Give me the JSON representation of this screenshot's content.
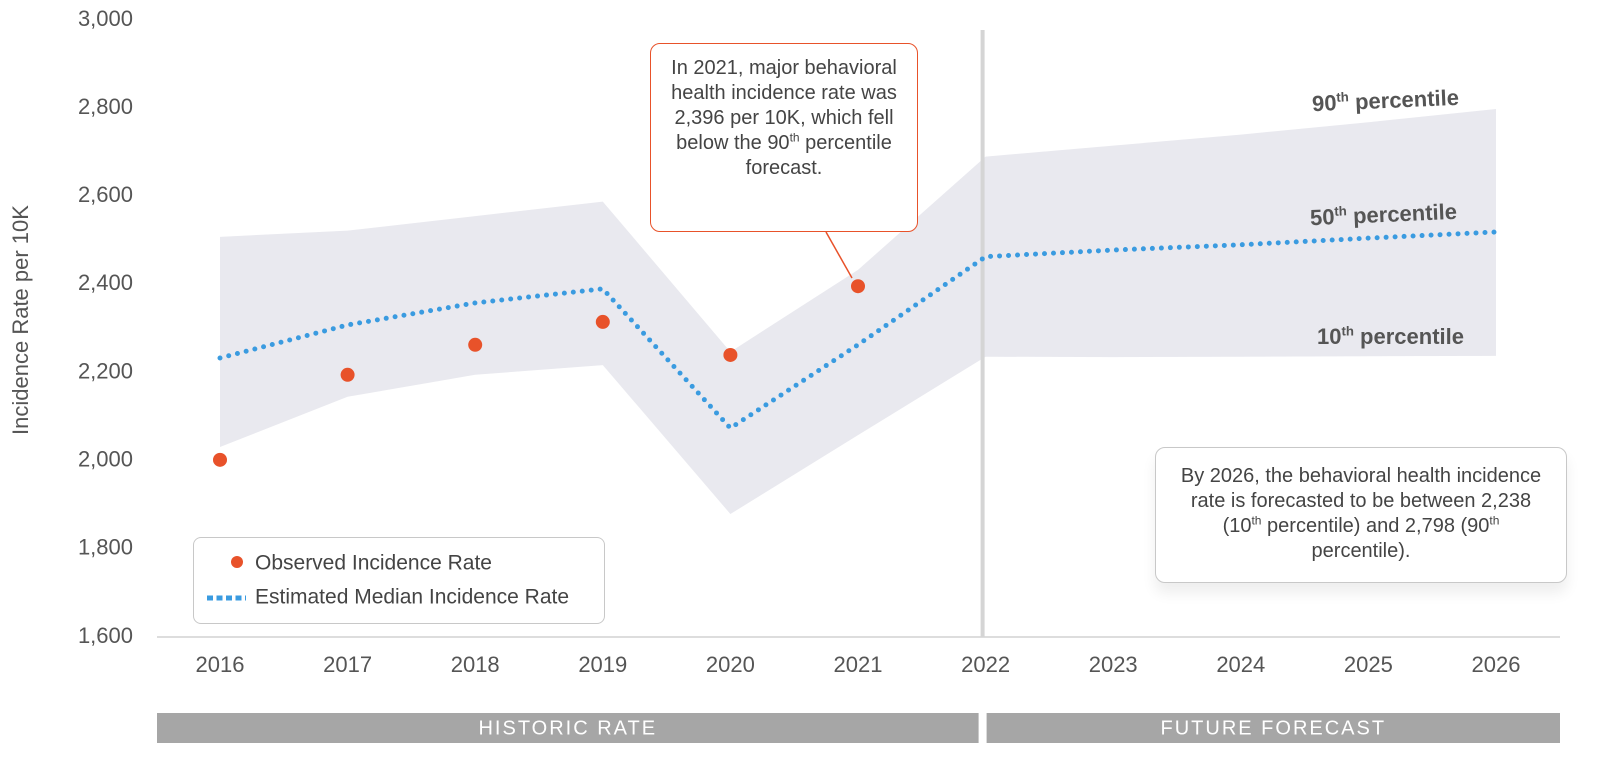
{
  "chart_data": {
    "type": "line",
    "y_label": "Incidence Rate per 10K",
    "categories": [
      "2016",
      "2017",
      "2018",
      "2019",
      "2020",
      "2021",
      "2022",
      "2023",
      "2024",
      "2025",
      "2026"
    ],
    "ylim": [
      1600,
      3000
    ],
    "yticks": [
      {
        "value": 1600,
        "label": "1,600"
      },
      {
        "value": 1800,
        "label": "1,800"
      },
      {
        "value": 2000,
        "label": "2,000"
      },
      {
        "value": 2200,
        "label": "2,200"
      },
      {
        "value": 2400,
        "label": "2,400"
      },
      {
        "value": 2600,
        "label": "2,600"
      },
      {
        "value": 2800,
        "label": "2,800"
      },
      {
        "value": 3000,
        "label": "3,000"
      }
    ],
    "grid": false,
    "band": {
      "color": "#e9e9ef",
      "upper": [
        2508,
        2522,
        2555,
        2588,
        2247,
        2433,
        2690,
        2715,
        2740,
        2768,
        2798
      ],
      "lower": [
        2031,
        2145,
        2195,
        2217,
        1879,
        2058,
        2236,
        2235,
        2236,
        2237,
        2238
      ]
    },
    "series": [
      {
        "name": "Observed Incidence Rate",
        "kind": "scatter",
        "color": "#e8522a",
        "values": [
          2002,
          2195,
          2263,
          2315,
          2240,
          2396,
          null,
          null,
          null,
          null,
          null
        ]
      },
      {
        "name": "Estimated Median Incidence Rate",
        "kind": "dotted-line",
        "color": "#3a9be0",
        "values": [
          2233,
          2308,
          2358,
          2390,
          2074,
          2263,
          2463,
          2478,
          2490,
          2505,
          2519
        ]
      }
    ],
    "divider": "2022",
    "periods": [
      "HISTORIC RATE",
      "FUTURE FORECAST"
    ],
    "band_labels": [
      [
        {
          "text": "90"
        },
        {
          "sup": "th"
        },
        {
          "text": " percentile"
        }
      ],
      [
        {
          "text": "50"
        },
        {
          "sup": "th"
        },
        {
          "text": " percentile"
        }
      ],
      [
        {
          "text": "10"
        },
        {
          "sup": "th"
        },
        {
          "text": " percentile"
        }
      ]
    ],
    "annotations": [
      [
        {
          "text": "In 2021, major behavioral health incidence rate was 2,396 per 10K, which fell below the 90"
        },
        {
          "sup": "th"
        },
        {
          "text": " percentile forecast."
        }
      ],
      [
        {
          "text": "By 2026, the behavioral health incidence rate is forecasted to be between 2,238 (10"
        },
        {
          "sup": "th"
        },
        {
          "text": " percentile) and 2,798 (90"
        },
        {
          "sup": "th"
        },
        {
          "text": " percentile)."
        }
      ]
    ]
  }
}
